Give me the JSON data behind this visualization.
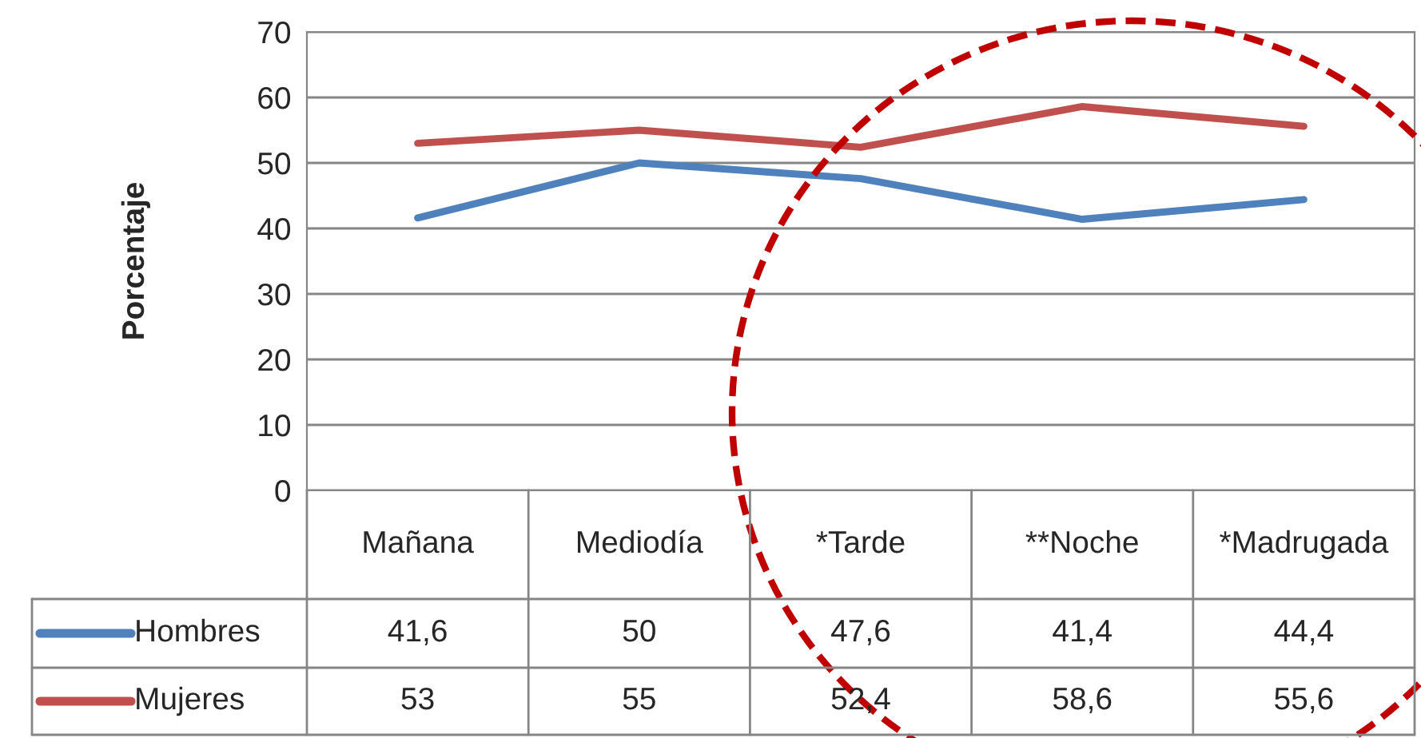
{
  "chart_data": {
    "type": "line",
    "ylabel": "Porcentaje",
    "categories": [
      "Mañana",
      "Mediodía",
      "*Tarde",
      "**Noche",
      "*Madrugada"
    ],
    "series": [
      {
        "name": "Hombres",
        "color": "#4f81bd",
        "values": [
          41.6,
          50,
          47.6,
          41.4,
          44.4
        ],
        "value_labels": [
          "41,6",
          "50",
          "47,6",
          "41,4",
          "44,4"
        ]
      },
      {
        "name": "Mujeres",
        "color": "#c0504d",
        "values": [
          53,
          55,
          52.4,
          58.6,
          55.6
        ],
        "value_labels": [
          "53",
          "55",
          "52,4",
          "58,6",
          "55,6"
        ]
      }
    ],
    "ylim": [
      0,
      70
    ],
    "yticks": [
      0,
      10,
      20,
      30,
      40,
      50,
      60,
      70
    ],
    "grid": "y",
    "legend": "bottom",
    "marker": "none",
    "line_style": "solid"
  }
}
